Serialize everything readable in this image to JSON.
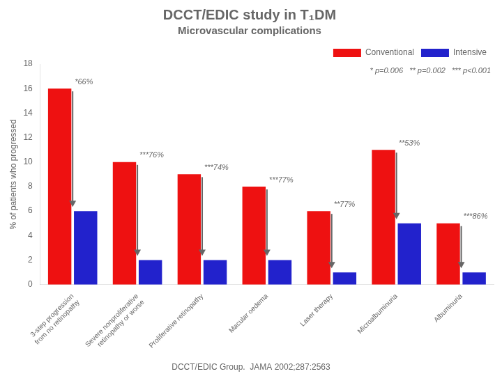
{
  "chart_data": {
    "type": "bar",
    "title": "DCCT/EDIC study in T₁DM",
    "subtitle": "Microvascular complications",
    "ylabel": "% of patients who progressed",
    "categories": [
      "3-step progression\nfrom no retinopathy",
      "Severe nonproliferative\nretinopathy or worse",
      "Proliferative retinopathy",
      "Macular oedema",
      "Laser therapy",
      "Microalbuminuria",
      "Albuminuria"
    ],
    "series": [
      {
        "name": "Conventional",
        "color": "#ee1111",
        "values": [
          16,
          10,
          9,
          8,
          6,
          11,
          5
        ]
      },
      {
        "name": "Intensive",
        "color": "#2222cc",
        "values": [
          6,
          2,
          2,
          2,
          1,
          5,
          1
        ]
      }
    ],
    "group_labels": [
      "*66%",
      "***76%",
      "***74%",
      "***77%",
      "**77%",
      "**53%",
      "***86%"
    ],
    "annotations": [
      "* p=0.006   ** p=0.002   *** p<0.001",
      "DCCT/EDIC Group.  JAMA 2002;287:2563"
    ],
    "ylim": [
      0,
      18
    ],
    "yticks": [
      0,
      2,
      4,
      6,
      8,
      10,
      12,
      14,
      16,
      18
    ],
    "grid": false,
    "legend": "upper right"
  }
}
